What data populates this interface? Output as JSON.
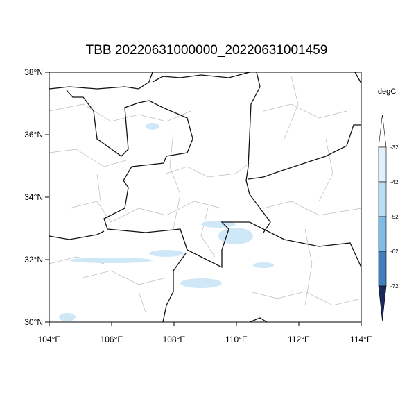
{
  "title": "TBB 20220631000000_20220631001459",
  "map": {
    "xlim": [
      104,
      114
    ],
    "ylim": [
      30,
      38
    ],
    "xticks": [
      {
        "value": 104,
        "label": "104°E"
      },
      {
        "value": 106,
        "label": "106°E"
      },
      {
        "value": 108,
        "label": "108°E"
      },
      {
        "value": 110,
        "label": "110°E"
      },
      {
        "value": 112,
        "label": "112°E"
      },
      {
        "value": 114,
        "label": "114°E"
      }
    ],
    "yticks": [
      {
        "value": 30,
        "label": "30°N"
      },
      {
        "value": 32,
        "label": "32°N"
      },
      {
        "value": 34,
        "label": "34°N"
      },
      {
        "value": 36,
        "label": "36°N"
      },
      {
        "value": 38,
        "label": "38°N"
      }
    ]
  },
  "colorbar": {
    "unit": "degC",
    "levels": [
      -32,
      -42,
      -52,
      -62,
      -72
    ],
    "colors": [
      "#ffffff",
      "#e1f1fb",
      "#b9def4",
      "#80bde6",
      "#3f7fbf",
      "#1b2a5c"
    ]
  }
}
